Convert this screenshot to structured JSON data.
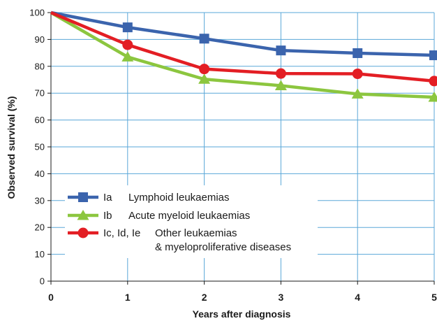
{
  "chart_data": {
    "type": "line",
    "xlabel": "Years after diagnosis",
    "ylabel": "Observed survival (%)",
    "x": [
      0,
      1,
      2,
      3,
      4,
      5
    ],
    "xlim": [
      0,
      5
    ],
    "ylim": [
      0,
      100
    ],
    "yticks": [
      0,
      10,
      20,
      30,
      40,
      50,
      60,
      70,
      80,
      90,
      100
    ],
    "grid": true,
    "legend_position": "lower-left",
    "series": [
      {
        "code": "Ia",
        "name": "Lymphoid leukaemias",
        "name_line2": "",
        "color": "#3b64ad",
        "marker": "square",
        "values": [
          100,
          94.5,
          90.3,
          85.9,
          84.9,
          84.1
        ]
      },
      {
        "code": "Ib",
        "name": "Acute myeloid leukaemias",
        "name_line2": "",
        "color": "#8cc63f",
        "marker": "triangle",
        "values": [
          100,
          83.5,
          75.2,
          72.8,
          69.7,
          68.5
        ]
      },
      {
        "code": "Ic, Id, Ie",
        "name": "Other leukaemias",
        "name_line2": "& myeloproliferative diseases",
        "color": "#e31e24",
        "marker": "circle",
        "values": [
          100,
          88.0,
          79.0,
          77.3,
          77.2,
          74.5
        ]
      }
    ]
  }
}
